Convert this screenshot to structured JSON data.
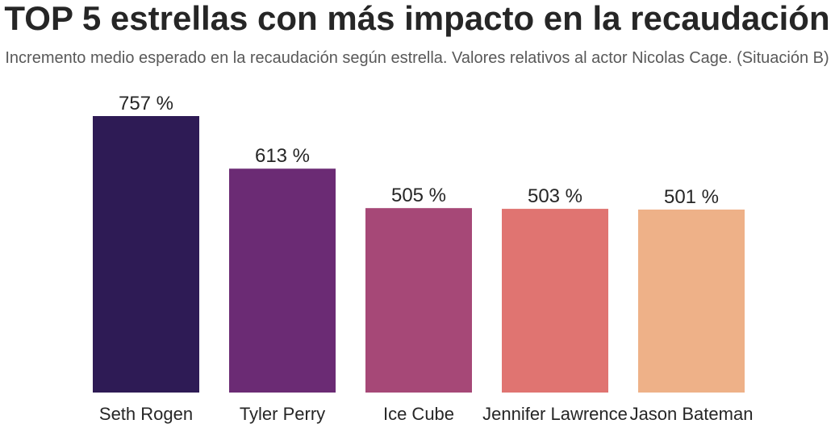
{
  "chart_data": {
    "type": "bar",
    "title": "TOP 5 estrellas con más impacto en la recaudación",
    "subtitle": "Incremento medio esperado en la recaudación según estrella. Valores relativos al actor Nicolas Cage. (Situación B)",
    "categories": [
      "Seth Rogen",
      "Tyler Perry",
      "Ice Cube",
      "Jennifer Lawrence",
      "Jason Bateman"
    ],
    "values": [
      757,
      613,
      505,
      503,
      501
    ],
    "value_labels": [
      "757 %",
      "613 %",
      "505 %",
      "503 %",
      "501 %"
    ],
    "colors": [
      "#2e1b55",
      "#6b2b74",
      "#a64877",
      "#e07471",
      "#eeb188"
    ],
    "xlabel": "",
    "ylabel": "",
    "ylim": [
      0,
      757
    ],
    "grid": false,
    "legend": "none"
  }
}
